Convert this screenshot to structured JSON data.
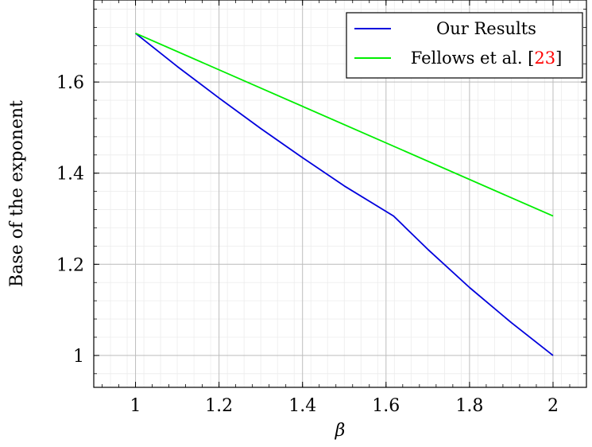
{
  "chart_data": {
    "type": "line",
    "xlabel": "β",
    "ylabel": "Base of the exponent",
    "xlim": [
      0.9,
      2.08
    ],
    "ylim": [
      0.93,
      1.78
    ],
    "xticks": [
      1,
      1.2,
      1.4,
      1.6,
      1.8,
      2
    ],
    "xtick_labels": [
      "1",
      "1.2",
      "1.4",
      "1.6",
      "1.8",
      "2"
    ],
    "yticks": [
      1,
      1.2,
      1.4,
      1.6
    ],
    "ytick_labels": [
      "1",
      "1.2",
      "1.4",
      "1.6"
    ],
    "grid": "major and minor",
    "legend_position": "top-right",
    "series": [
      {
        "name": "Our Results",
        "color": "#0000dd",
        "x": [
          1.0,
          1.1,
          1.2,
          1.3,
          1.4,
          1.5,
          1.618,
          1.7,
          1.8,
          1.9,
          2.0
        ],
        "y": [
          1.707,
          1.634,
          1.565,
          1.498,
          1.434,
          1.372,
          1.306,
          1.233,
          1.149,
          1.072,
          1.0
        ]
      },
      {
        "name": "Fellows et al. [23]",
        "name_prefix": "Fellows et al. [",
        "name_citation": "23",
        "name_suffix": "]",
        "citation_color": "#ff0000",
        "color": "#00ee00",
        "x": [
          1.0,
          2.0
        ],
        "y": [
          1.707,
          1.306
        ]
      }
    ]
  }
}
